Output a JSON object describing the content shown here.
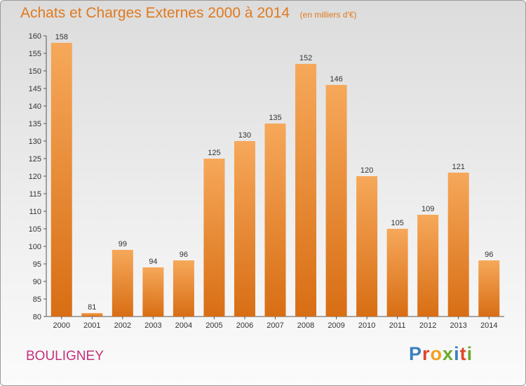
{
  "header": {
    "title": "Achats et Charges Externes 2000 à 2014",
    "unit": "(en milliers d'€)"
  },
  "footer": {
    "commune": "BOULIGNEY",
    "brand": "Proxiti"
  },
  "colors": {
    "bar_top": "#f6a85a",
    "bar_bottom": "#d86e14",
    "title": "#e07a1e",
    "commune": "#c4307a"
  },
  "chart_data": {
    "type": "bar",
    "title": "Achats et Charges Externes 2000 à 2014",
    "subtitle": "(en milliers d'€)",
    "xlabel": "",
    "ylabel": "",
    "categories": [
      "2000",
      "2001",
      "2002",
      "2003",
      "2004",
      "2005",
      "2006",
      "2007",
      "2008",
      "2009",
      "2010",
      "2011",
      "2012",
      "2013",
      "2014"
    ],
    "values": [
      158,
      81,
      99,
      94,
      96,
      125,
      130,
      135,
      152,
      146,
      120,
      105,
      109,
      121,
      96
    ],
    "ylim": [
      80,
      160
    ],
    "yticks": [
      80,
      85,
      90,
      95,
      100,
      105,
      110,
      115,
      120,
      125,
      130,
      135,
      140,
      145,
      150,
      155,
      160
    ],
    "grid": false,
    "legend": "none"
  }
}
